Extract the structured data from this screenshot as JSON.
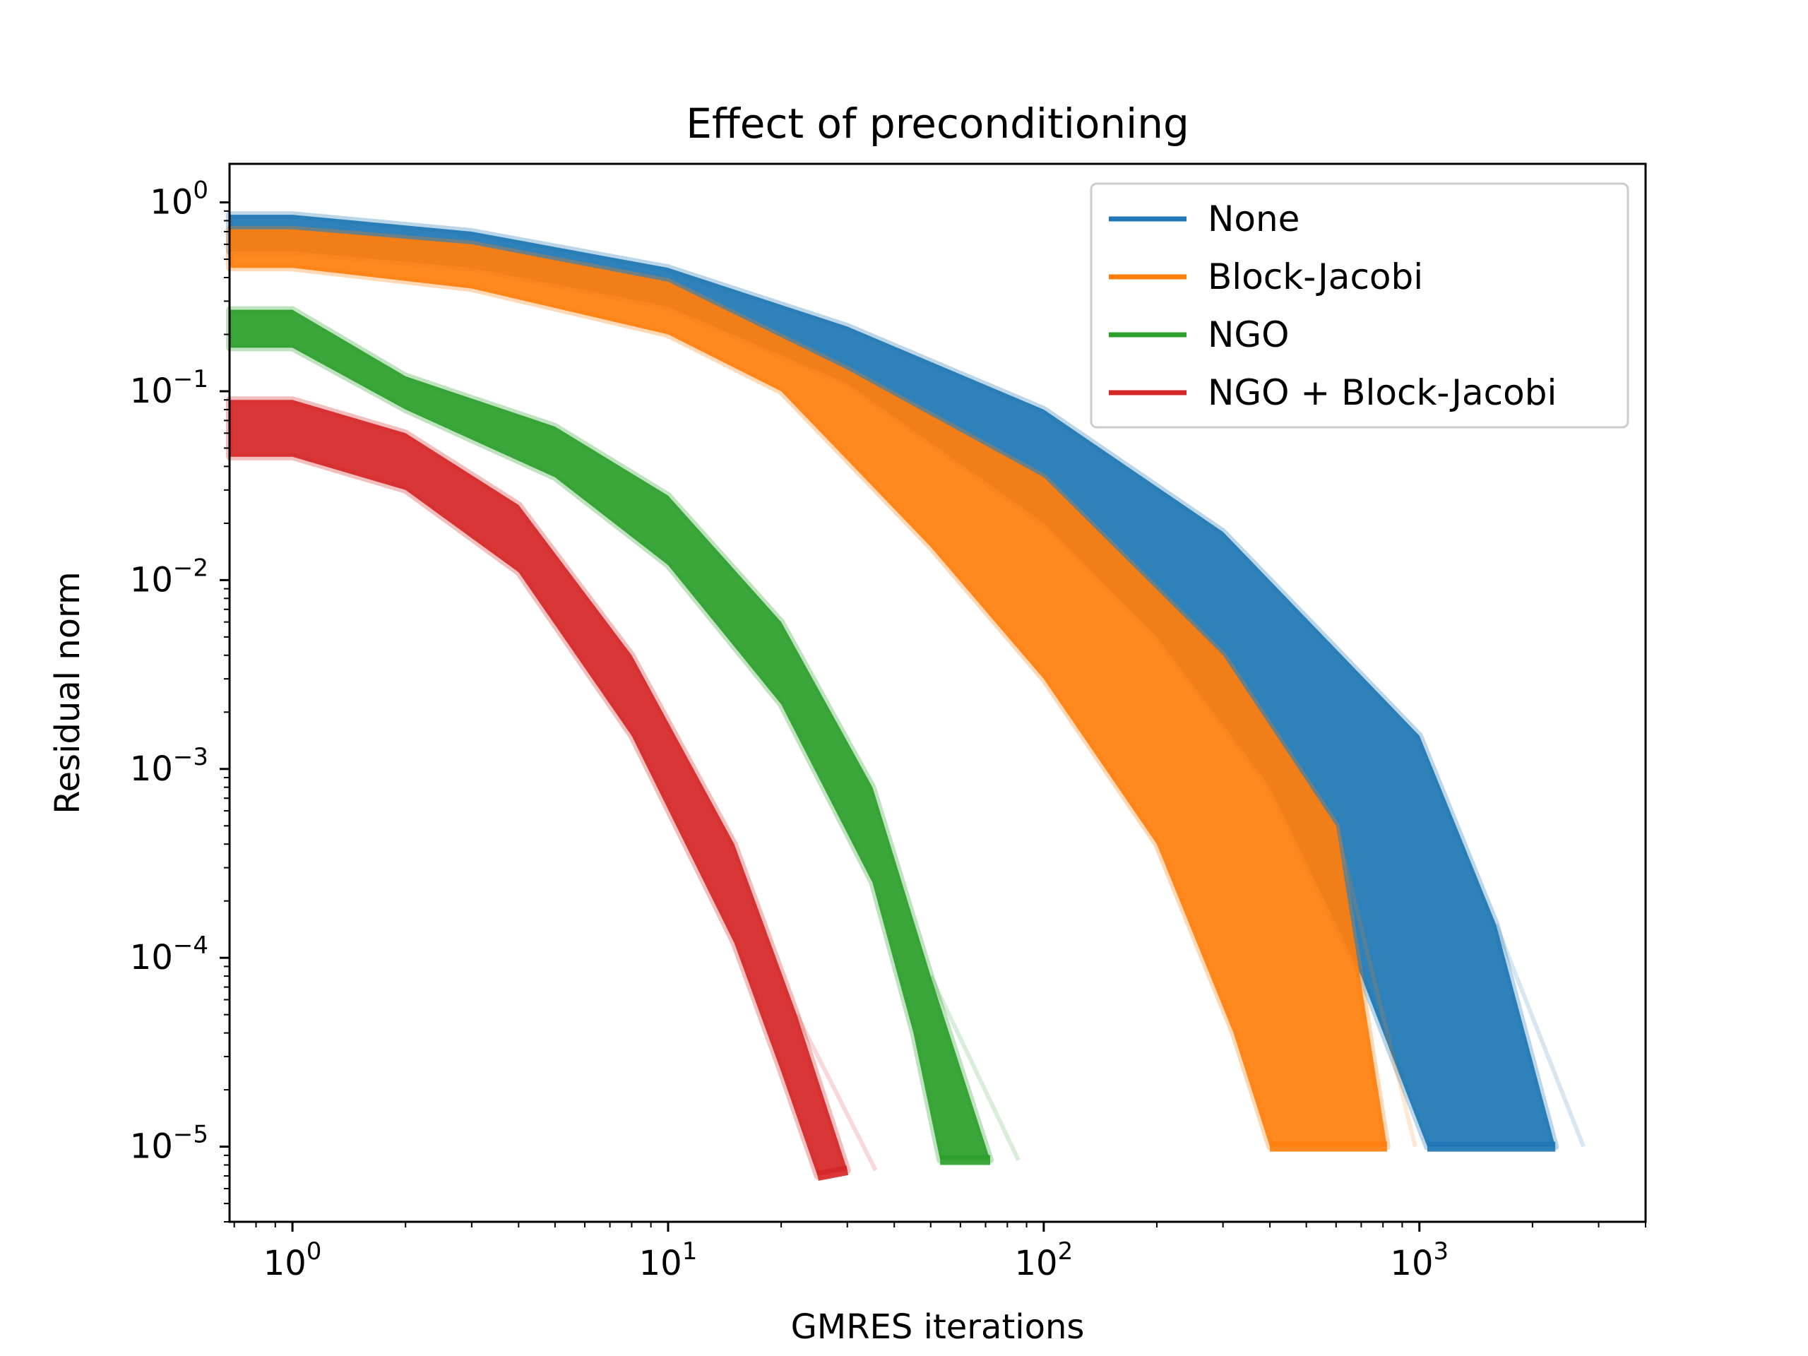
{
  "chart_data": {
    "type": "line",
    "title": "Effect of preconditioning",
    "xlabel": "GMRES iterations",
    "ylabel": "Residual norm",
    "x_scale": "log",
    "y_scale": "log",
    "xlim": [
      0.68,
      4000
    ],
    "ylim": [
      4e-06,
      1.6
    ],
    "grid": false,
    "legend_position": "top-right",
    "x_ticks": [
      {
        "value": 1,
        "base": "10",
        "exp": "0"
      },
      {
        "value": 10,
        "base": "10",
        "exp": "1"
      },
      {
        "value": 100,
        "base": "10",
        "exp": "2"
      },
      {
        "value": 1000,
        "base": "10",
        "exp": "3"
      }
    ],
    "y_ticks": [
      {
        "value": 1,
        "base": "10",
        "exp": "0"
      },
      {
        "value": 0.1,
        "base": "10",
        "exp": "−1"
      },
      {
        "value": 0.01,
        "base": "10",
        "exp": "−2"
      },
      {
        "value": 0.001,
        "base": "10",
        "exp": "−3"
      },
      {
        "value": 0.0001,
        "base": "10",
        "exp": "−4"
      },
      {
        "value": 1e-05,
        "base": "10",
        "exp": "−5"
      }
    ],
    "series": [
      {
        "name": "None",
        "color": "#1f77b4",
        "band_upper": [
          [
            0.68,
            0.86
          ],
          [
            1,
            0.86
          ],
          [
            3,
            0.7
          ],
          [
            10,
            0.45
          ],
          [
            30,
            0.22
          ],
          [
            100,
            0.08
          ],
          [
            300,
            0.018
          ],
          [
            1000,
            0.0015
          ],
          [
            1600,
            0.00015
          ],
          [
            2300,
            1e-05
          ]
        ],
        "band_lower": [
          [
            0.68,
            0.55
          ],
          [
            1,
            0.55
          ],
          [
            3,
            0.45
          ],
          [
            10,
            0.28
          ],
          [
            30,
            0.11
          ],
          [
            100,
            0.02
          ],
          [
            200,
            0.005
          ],
          [
            400,
            0.0008
          ],
          [
            700,
            8e-05
          ],
          [
            1050,
            1e-05
          ]
        ]
      },
      {
        "name": "Block-Jacobi",
        "color": "#ff7f0e",
        "band_upper": [
          [
            0.68,
            0.72
          ],
          [
            1,
            0.72
          ],
          [
            3,
            0.6
          ],
          [
            10,
            0.38
          ],
          [
            30,
            0.13
          ],
          [
            100,
            0.035
          ],
          [
            300,
            0.004
          ],
          [
            600,
            0.0005
          ],
          [
            820,
            1e-05
          ]
        ],
        "band_lower": [
          [
            0.68,
            0.45
          ],
          [
            1,
            0.45
          ],
          [
            3,
            0.35
          ],
          [
            10,
            0.2
          ],
          [
            20,
            0.1
          ],
          [
            50,
            0.015
          ],
          [
            100,
            0.003
          ],
          [
            200,
            0.0004
          ],
          [
            320,
            4e-05
          ],
          [
            400,
            1e-05
          ]
        ]
      },
      {
        "name": "NGO",
        "color": "#2ca02c",
        "band_upper": [
          [
            0.68,
            0.27
          ],
          [
            1,
            0.27
          ],
          [
            2,
            0.12
          ],
          [
            5,
            0.065
          ],
          [
            10,
            0.028
          ],
          [
            20,
            0.006
          ],
          [
            35,
            0.0008
          ],
          [
            50,
            8e-05
          ],
          [
            72,
            8.5e-06
          ]
        ],
        "band_lower": [
          [
            0.68,
            0.17
          ],
          [
            1,
            0.17
          ],
          [
            2,
            0.08
          ],
          [
            5,
            0.035
          ],
          [
            10,
            0.012
          ],
          [
            20,
            0.0022
          ],
          [
            35,
            0.00025
          ],
          [
            45,
            4e-05
          ],
          [
            53,
            8.5e-06
          ]
        ]
      },
      {
        "name": "NGO + Block-Jacobi",
        "color": "#d62728",
        "band_upper": [
          [
            0.68,
            0.09
          ],
          [
            1,
            0.09
          ],
          [
            2,
            0.06
          ],
          [
            4,
            0.025
          ],
          [
            8,
            0.004
          ],
          [
            15,
            0.0004
          ],
          [
            22,
            5e-05
          ],
          [
            30,
            7.5e-06
          ]
        ],
        "band_lower": [
          [
            0.68,
            0.045
          ],
          [
            1,
            0.045
          ],
          [
            2,
            0.03
          ],
          [
            4,
            0.011
          ],
          [
            8,
            0.0015
          ],
          [
            15,
            0.00012
          ],
          [
            20,
            2.5e-05
          ],
          [
            25,
            7e-06
          ]
        ]
      }
    ]
  }
}
